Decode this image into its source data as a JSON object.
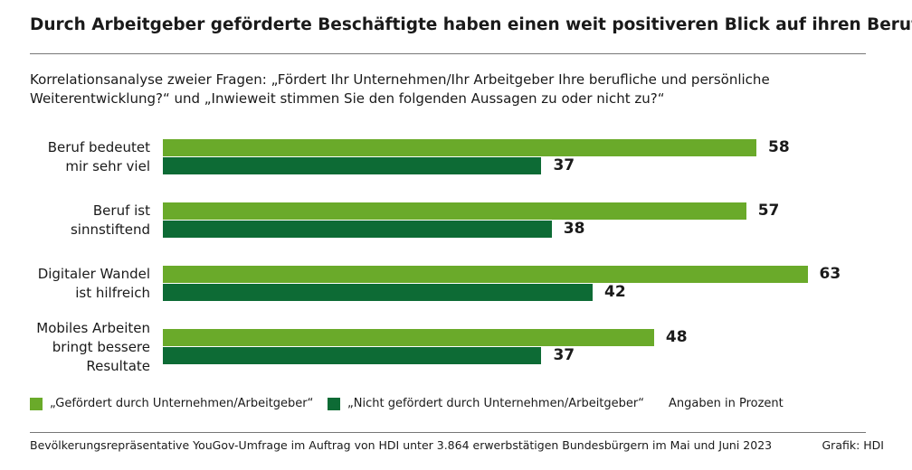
{
  "chart_data": {
    "type": "bar",
    "title": "Durch Arbeitgeber geförderte Beschäftigte haben einen weit positiveren Blick auf ihren Beruf",
    "subtitle": "Korrelationsanalyse zweier Fragen: „Fördert Ihr Unternehmen/Ihr Arbeitgeber Ihre berufliche und persönliche Weiterentwicklung?“ und „Inwieweit stimmen Sie den folgenden Aussagen zu oder nicht zu?“",
    "categories": [
      "Beruf bedeutet\nmir sehr viel",
      "Beruf ist\nsinnstiftend",
      "Digitaler Wandel\nist hilfreich",
      "Mobiles Arbeiten\nbringt bessere\nResultate"
    ],
    "series": [
      {
        "name": "„Gefördert durch Unternehmen/Arbeitgeber“",
        "color": "#6aaa2a",
        "values": [
          58,
          57,
          63,
          48
        ]
      },
      {
        "name": "„Nicht gefördert durch Unternehmen/Arbeitgeber“",
        "color": "#0d6b35",
        "values": [
          37,
          38,
          42,
          37
        ]
      }
    ],
    "note": "Angaben in Prozent",
    "source": "Bevölkerungsrepräsentative YouGov-Umfrage im Auftrag von HDI unter 3.864 erwerbstätigen Bundesbürgern im Mai und Juni 2023",
    "credit": "Grafik: HDI"
  }
}
